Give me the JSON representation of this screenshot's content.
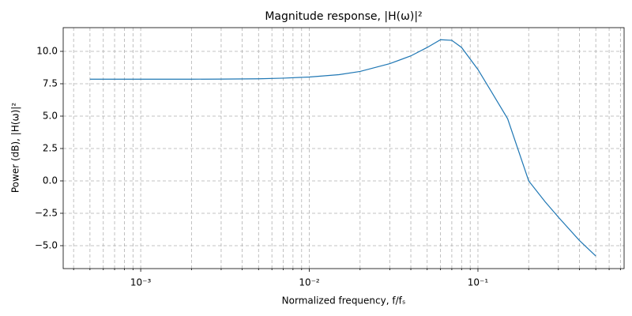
{
  "chart_data": {
    "type": "line",
    "title": "Magnitude response, |H(ω)|²",
    "xlabel": "Normalized frequency, f/fₛ",
    "ylabel": "Power (dB), |H(ω)|²",
    "xscale": "log",
    "grid": true,
    "xlim": [
      0.000347,
      0.736
    ],
    "ylim": [
      -6.77,
      11.83
    ],
    "xticks": [
      {
        "value": 0.001,
        "label": "10⁻³"
      },
      {
        "value": 0.01,
        "label": "10⁻²"
      },
      {
        "value": 0.1,
        "label": "10⁻¹"
      }
    ],
    "xminorticks": [
      0.0004,
      0.0005,
      0.0006,
      0.0007,
      0.0008,
      0.0009,
      0.002,
      0.003,
      0.004,
      0.005,
      0.006,
      0.007,
      0.008,
      0.009,
      0.02,
      0.03,
      0.04,
      0.05,
      0.06,
      0.07,
      0.08,
      0.09,
      0.2,
      0.3,
      0.4,
      0.5,
      0.6,
      0.7
    ],
    "yticks": [
      {
        "value": -5,
        "label": "−5.0"
      },
      {
        "value": -2.5,
        "label": "−2.5"
      },
      {
        "value": 0,
        "label": "0.0"
      },
      2.5,
      {
        "value": 5,
        "label": "5.0"
      },
      7.5,
      {
        "value": 10,
        "label": "10.0"
      }
    ],
    "x": [
      0.0005,
      0.001,
      0.002,
      0.003,
      0.005,
      0.007,
      0.01,
      0.015,
      0.02,
      0.03,
      0.04,
      0.05,
      0.06,
      0.07,
      0.08,
      0.1,
      0.12,
      0.15,
      0.2,
      0.25,
      0.3,
      0.4,
      0.5
    ],
    "series": [
      {
        "color": "#1f77b4",
        "values": [
          7.85,
          7.85,
          7.85,
          7.86,
          7.88,
          7.93,
          8.02,
          8.2,
          8.45,
          9.05,
          9.65,
          10.3,
          10.9,
          10.85,
          10.3,
          8.6,
          6.9,
          4.8,
          0.0,
          -1.6,
          -2.8,
          -4.6,
          -5.8
        ]
      }
    ]
  }
}
